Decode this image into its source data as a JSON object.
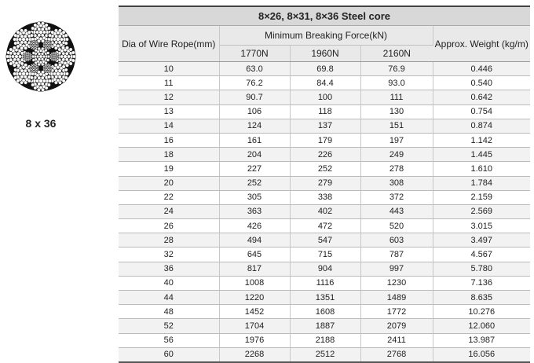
{
  "figure": {
    "caption": "8 x 36"
  },
  "table": {
    "title": "8×26,  8×31,  8×36  Steel core",
    "col_dia": "Dia of Wire Rope(mm)",
    "col_mbf": "Minimum Breaking Force(kN)",
    "mbf_sub": [
      "1770N",
      "1960N",
      "2160N"
    ],
    "col_weight": "Approx. Weight (kg/m)",
    "rows": [
      [
        "10",
        "63.0",
        "69.8",
        "76.9",
        "0.446"
      ],
      [
        "11",
        "76.2",
        "84.4",
        "93.0",
        "0.540"
      ],
      [
        "12",
        "90.7",
        "100",
        "111",
        "0.642"
      ],
      [
        "13",
        "106",
        "118",
        "130",
        "0.754"
      ],
      [
        "14",
        "124",
        "137",
        "151",
        "0.874"
      ],
      [
        "16",
        "161",
        "179",
        "197",
        "1.142"
      ],
      [
        "18",
        "204",
        "226",
        "249",
        "1.445"
      ],
      [
        "19",
        "227",
        "252",
        "278",
        "1.610"
      ],
      [
        "20",
        "252",
        "279",
        "308",
        "1.784"
      ],
      [
        "22",
        "305",
        "338",
        "372",
        "2.159"
      ],
      [
        "24",
        "363",
        "402",
        "443",
        "2.569"
      ],
      [
        "26",
        "426",
        "472",
        "520",
        "3.015"
      ],
      [
        "28",
        "494",
        "547",
        "603",
        "3.497"
      ],
      [
        "32",
        "645",
        "715",
        "787",
        "4.567"
      ],
      [
        "36",
        "817",
        "904",
        "997",
        "5.780"
      ],
      [
        "40",
        "1008",
        "1116",
        "1230",
        "7.136"
      ],
      [
        "44",
        "1220",
        "1351",
        "1489",
        "8.635"
      ],
      [
        "48",
        "1452",
        "1608",
        "1772",
        "10.276"
      ],
      [
        "52",
        "1704",
        "1887",
        "2079",
        "12.060"
      ],
      [
        "56",
        "1976",
        "2188",
        "2411",
        "13.987"
      ],
      [
        "60",
        "2268",
        "2512",
        "2768",
        "16.056"
      ]
    ]
  }
}
